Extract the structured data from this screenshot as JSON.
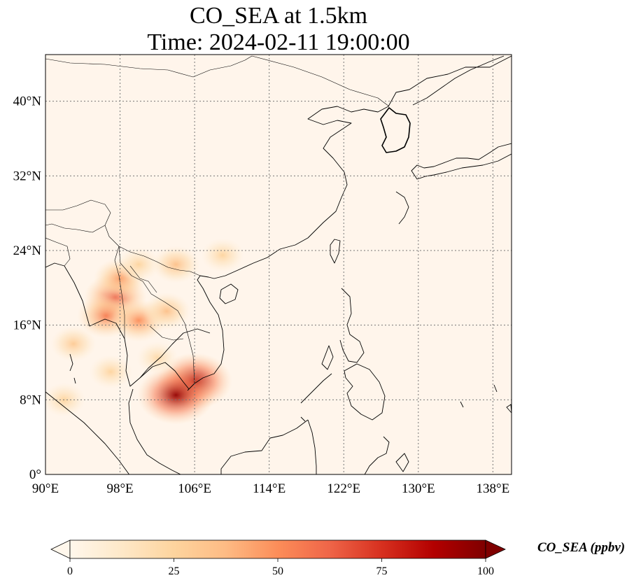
{
  "title": {
    "line1": "CO_SEA at 1.5km",
    "line2": "Time: 2024-02-11 19:00:00"
  },
  "map": {
    "lon_range": [
      90,
      140
    ],
    "lat_range": [
      0,
      45
    ],
    "lon_ticks": [
      90,
      98,
      106,
      114,
      122,
      130,
      138
    ],
    "lon_tick_labels": [
      "90°E",
      "98°E",
      "106°E",
      "114°E",
      "122°E",
      "130°E",
      "138°E"
    ],
    "lat_ticks": [
      0,
      8,
      16,
      24,
      32,
      40
    ],
    "lat_tick_labels": [
      "0°",
      "8°N",
      "16°N",
      "24°N",
      "32°N",
      "40°N"
    ],
    "grid": true,
    "background_color": "#fff5eb",
    "coastline_color": "#000000"
  },
  "colorbar": {
    "title": "CO_SEA (ppbv)",
    "colormap": "OrRd",
    "range": [
      0,
      100
    ],
    "ticks": [
      0,
      25,
      50,
      75,
      100
    ],
    "tick_labels": [
      "0",
      "25",
      "50",
      "75",
      "100"
    ],
    "extend": "both",
    "stops": [
      "#fff7ec",
      "#fee8c8",
      "#fdd49e",
      "#fdbb84",
      "#fc8d59",
      "#ef6548",
      "#d7301f",
      "#b30000",
      "#7f0000"
    ]
  },
  "plumes": [
    {
      "lon": 97.5,
      "lat": 19.0,
      "value": 65
    },
    {
      "lon": 96.5,
      "lat": 17.0,
      "value": 55
    },
    {
      "lon": 98.0,
      "lat": 21.0,
      "value": 45
    },
    {
      "lon": 100.0,
      "lat": 16.5,
      "value": 50
    },
    {
      "lon": 103.0,
      "lat": 17.5,
      "value": 35
    },
    {
      "lon": 106.0,
      "lat": 10.0,
      "value": 90
    },
    {
      "lon": 104.0,
      "lat": 8.5,
      "value": 95
    },
    {
      "lon": 93.0,
      "lat": 14.0,
      "value": 30
    },
    {
      "lon": 92.0,
      "lat": 8.0,
      "value": 25
    },
    {
      "lon": 100.0,
      "lat": 22.5,
      "value": 25
    },
    {
      "lon": 104.0,
      "lat": 22.5,
      "value": 35
    },
    {
      "lon": 109.0,
      "lat": 23.5,
      "value": 25
    },
    {
      "lon": 102.0,
      "lat": 12.5,
      "value": 22
    },
    {
      "lon": 97.0,
      "lat": 11.0,
      "value": 25
    }
  ]
}
